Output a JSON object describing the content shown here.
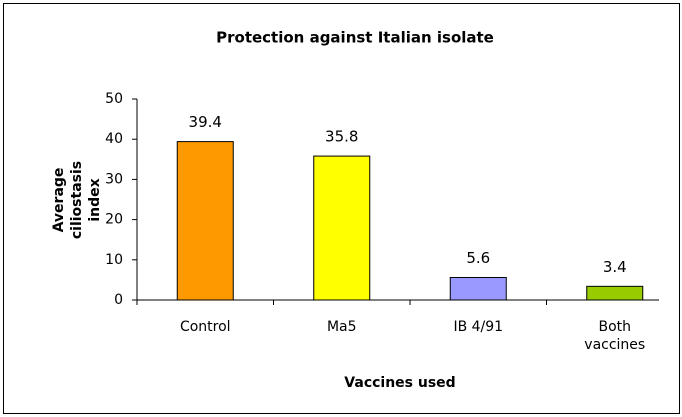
{
  "chart_data": {
    "type": "bar",
    "title": "Protection against Italian isolate",
    "x_label": "Vaccines used",
    "y_label": "Average ciliostasis index",
    "categories": [
      "Control",
      "Ma5",
      "IB 4/91",
      "Both vaccines"
    ],
    "values": [
      39.4,
      35.8,
      5.6,
      3.4
    ],
    "colors": [
      "#ff9900",
      "#ffff00",
      "#9999ff",
      "#99cc00"
    ],
    "ylim": [
      0,
      50
    ],
    "yticks": [
      0,
      10,
      20,
      30,
      40,
      50
    ],
    "grid": false
  }
}
